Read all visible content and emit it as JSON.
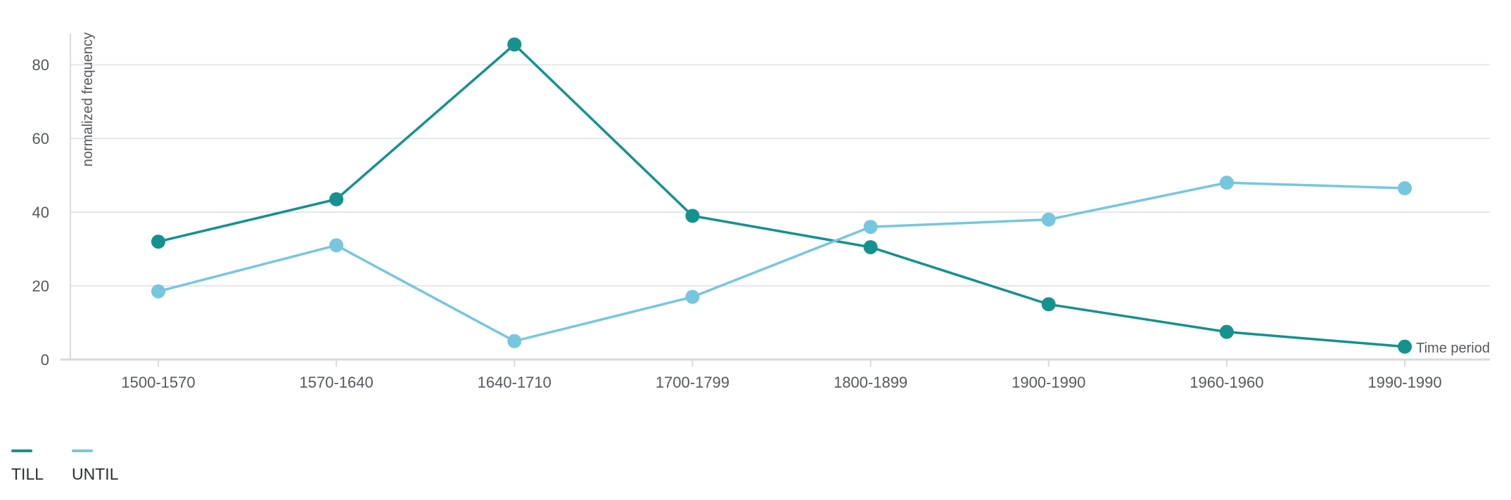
{
  "chart_data": {
    "type": "line",
    "categories": [
      "1500-1570",
      "1570-1640",
      "1640-1710",
      "1700-1799",
      "1800-1899",
      "1900-1990",
      "1960-1960",
      "1990-1990"
    ],
    "series": [
      {
        "name": "TILL",
        "color": "#15918f",
        "values": [
          32,
          43.5,
          85.5,
          39,
          30.5,
          15,
          7.5,
          3.5
        ]
      },
      {
        "name": "UNTIL",
        "color": "#77c6e0",
        "values": [
          18.5,
          31,
          5,
          17,
          36,
          38,
          48,
          46.5
        ]
      }
    ],
    "ylabel": "normalized frequency",
    "xlabel": "Time period",
    "ylim": [
      0,
      85
    ],
    "yticks": [
      0,
      20,
      40,
      60,
      80
    ],
    "grid": true,
    "legend_position": "bottom-left"
  }
}
